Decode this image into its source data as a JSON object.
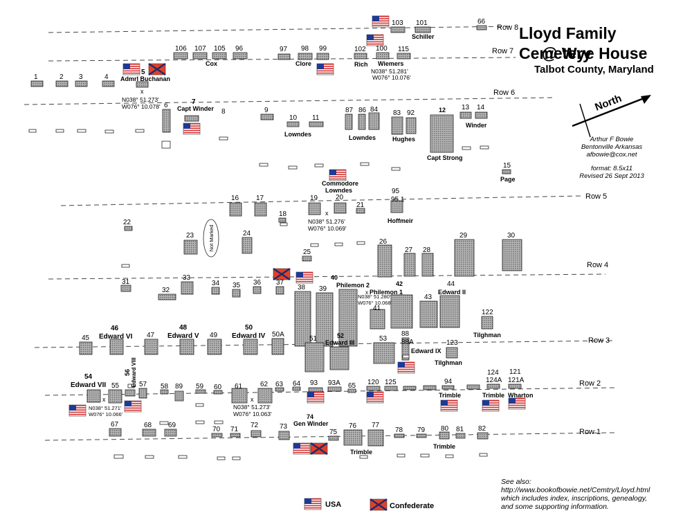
{
  "header": {
    "title_line1": "Lloyd Family Cemetery",
    "title_line2": "@ Wye House",
    "county": "Talbot County,  Maryland",
    "north_label": "North"
  },
  "credit": {
    "name": "Arthur F Bowie",
    "place": "Bentonville Arkansas",
    "email": "afbowie@cox.net",
    "format": "format: 8.5x11",
    "revised": "Revised 26 Sept 2013"
  },
  "see_also": {
    "line1": "See also:",
    "line2": "http://www.bookofbowie.net/Cemtry/Lloyd.html",
    "line3": "which includes index, inscriptions, genealogy,",
    "line4": "and some supporting information."
  },
  "legend": {
    "usa": "USA",
    "confederate": "Confederate"
  },
  "rows": {
    "row8": "Row 8",
    "row7": "Row 7",
    "row6": "Row 6",
    "row5": "Row 5",
    "row4": "Row 4",
    "row3": "Row 3",
    "row2": "Row 2",
    "row1": "Row 1"
  },
  "coords": {
    "c1a": "N038° 51.273'",
    "c1b": "W076° 10.078'",
    "c2a": "N038° 51.281'",
    "c2b": "W076° 10.076'",
    "c3a": "N038° 51.276'",
    "c3b": "W076° 10.069'",
    "c4a": "N038° 51.280'",
    "c4b": "W076° 10.068'",
    "c5a": "N038° 51.271'",
    "c5b": "W076° 10.066'",
    "c6a": "N038° 51.273'",
    "c6b": "W076° 10.063'",
    "x": "x"
  },
  "labels": {
    "n103": "103",
    "n101": "101",
    "schiller": "Schiller",
    "n66": "66",
    "n106": "106",
    "n107": "107",
    "n105": "105",
    "n96": "96",
    "cox": "Cox",
    "n97": "97",
    "n98": "98",
    "n99": "99",
    "clore": "Clore",
    "n102": "102",
    "n100": "100",
    "n115": "115",
    "rich": "Rich",
    "wiemers": "Wiemers",
    "n1": "1",
    "n2": "2",
    "n3": "3",
    "n4": "4",
    "n5": "5",
    "admrl": "Admrl Buchanan",
    "n6": "6",
    "n7": "7",
    "captwinder": "Capt Winder",
    "n8": "8",
    "n9": "9",
    "n10": "10",
    "n11": "11",
    "lowndes1": "Lowndes",
    "n87": "87",
    "n86": "86",
    "n84": "84",
    "lowndes2": "Lowndes",
    "n83": "83",
    "n92": "92",
    "hughes": "Hughes",
    "n12": "12",
    "captstrong": "Capt Strong",
    "n13": "13",
    "n14": "14",
    "winder": "Winder",
    "n15": "15",
    "page": "Page",
    "commodore": "Commodore",
    "lowndes3": "Lowndes",
    "n16": "16",
    "n17": "17",
    "n18": "18",
    "n19": "19",
    "n20": "20",
    "n21": "21",
    "n95": "95",
    "n951": "95.1",
    "hoffmeir": "Hoffmeir",
    "n22": "22",
    "n23": "23",
    "notmarked": "Not Marked",
    "n24": "24",
    "n25": "25",
    "n26": "26",
    "n27": "27",
    "n28": "28",
    "n29": "29",
    "n30": "30",
    "n31": "31",
    "n32": "32",
    "n33": "33",
    "n34": "34",
    "n35": "35",
    "n36": "36",
    "n37": "37",
    "n38": "38",
    "n39": "39",
    "n40": "40",
    "philemon2": "Philemon 2",
    "n42": "42",
    "philemon1": "Philemon 1",
    "n41": "41",
    "n43": "43",
    "n44": "44",
    "edward2": "Edward II",
    "n122": "122",
    "tilghman1": "Tilghman",
    "n45": "45",
    "n46": "46",
    "edward6": "Edward VI",
    "n47": "47",
    "n48": "48",
    "edward5": "Edward V",
    "n49": "49",
    "n50": "50",
    "edward4": "Edward IV",
    "n50a": "50A",
    "n51": "51",
    "n52": "52",
    "edward3": "Edward III",
    "n53": "53",
    "n88": "88",
    "n88a": "88A",
    "edward9": "Edward IX",
    "n123": "123",
    "tilghman2": "Tilghman",
    "n54": "54",
    "edward7": "Edward VII",
    "n55": "55",
    "n56": "56",
    "edward8": "Edward VIII",
    "n57": "57",
    "n58": "58",
    "n89": "89",
    "n59": "59",
    "n60": "60",
    "n61": "61",
    "n62": "62",
    "n63": "63",
    "n64": "64",
    "n93": "93",
    "n93a": "93A",
    "n65": "65",
    "n120": "120",
    "n125": "125",
    "n94": "94",
    "trimble1": "Trimble",
    "n124": "124",
    "n124a": "124A",
    "n121": "121",
    "n121a": "121A",
    "trimble2": "Trimble",
    "wharton": "Wharton",
    "n67": "67",
    "n68": "68",
    "n69": "69",
    "n70": "70",
    "n71": "71",
    "n72": "72",
    "n73": "73",
    "n74": "74",
    "genwinder": "Gen Winder",
    "n75": "75",
    "n76": "76",
    "n77": "77",
    "trimble3": "Trimble",
    "n78": "78",
    "n79": "79",
    "n80": "80",
    "n81": "81",
    "n82": "82",
    "trimble4": "Trimble"
  },
  "colors": {
    "stone_fill": "#9a9a9a",
    "stone_stroke": "#222222",
    "flag_red": "#d32f2f",
    "flag_blue": "#1f3a93",
    "csa_red": "#e0402a"
  },
  "icons": {
    "usa_flag": "usa-flag-icon",
    "confederate_flag": "confederate-flag-icon",
    "north_arrow": "north-arrow-icon"
  }
}
